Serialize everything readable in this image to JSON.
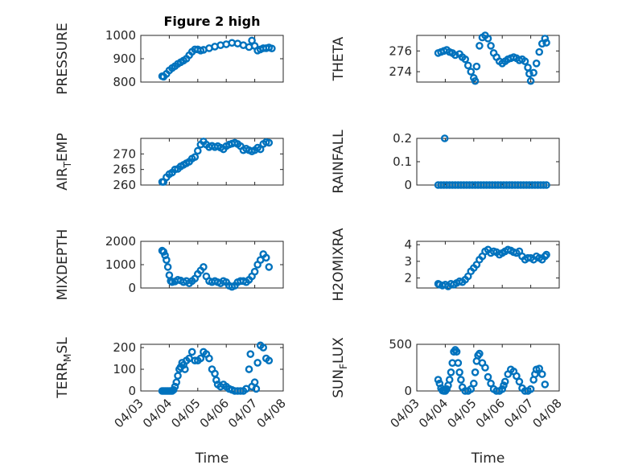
{
  "chart_data": [
    {
      "type": "scatter",
      "name": "pressure",
      "title": "Figure 2 high",
      "ylabel": "PRESSURE",
      "ylabel_sub": "",
      "ylabel_tail": "",
      "xlabel": "",
      "ylim": [
        800,
        1000
      ],
      "yticks": [
        800,
        900,
        1000
      ],
      "ytick_labels": [
        "800",
        "900",
        "1000"
      ],
      "xlim": [
        0,
        5
      ],
      "xticks": [
        0,
        1,
        2,
        3,
        4,
        5
      ],
      "xtick_labels": [],
      "x": [
        0.75,
        0.8,
        0.9,
        1.0,
        1.1,
        1.2,
        1.3,
        1.4,
        1.5,
        1.6,
        1.7,
        1.8,
        1.9,
        2.0,
        2.1,
        2.2,
        2.4,
        2.6,
        2.8,
        3.0,
        3.2,
        3.4,
        3.6,
        3.8,
        3.9,
        4.0,
        4.1,
        4.2,
        4.3,
        4.4,
        4.5,
        4.6
      ],
      "y": [
        825,
        823,
        835,
        850,
        860,
        868,
        878,
        885,
        892,
        900,
        915,
        930,
        940,
        940,
        935,
        938,
        945,
        952,
        958,
        962,
        968,
        965,
        958,
        950,
        978,
        955,
        935,
        940,
        945,
        945,
        948,
        944
      ]
    },
    {
      "type": "scatter",
      "name": "theta",
      "title": "",
      "ylabel": "THETA",
      "ylabel_sub": "",
      "ylabel_tail": "",
      "xlabel": "",
      "ylim": [
        273,
        277.5
      ],
      "yticks": [
        274,
        276
      ],
      "ytick_labels": [
        "274",
        "276"
      ],
      "xlim": [
        0,
        5
      ],
      "xticks": [
        0,
        1,
        2,
        3,
        4,
        5
      ],
      "xtick_labels": [],
      "x": [
        0.75,
        0.85,
        0.95,
        1.05,
        1.15,
        1.25,
        1.35,
        1.5,
        1.6,
        1.7,
        1.8,
        1.9,
        2.0,
        2.05,
        2.1,
        2.2,
        2.3,
        2.4,
        2.5,
        2.6,
        2.7,
        2.8,
        2.9,
        3.0,
        3.1,
        3.2,
        3.3,
        3.4,
        3.5,
        3.6,
        3.7,
        3.8,
        3.9,
        3.95,
        4.0,
        4.1,
        4.2,
        4.3,
        4.4,
        4.5,
        4.55
      ],
      "y": [
        275.8,
        275.9,
        276.0,
        276.1,
        275.9,
        275.8,
        275.6,
        275.7,
        275.4,
        275.2,
        274.6,
        274.0,
        273.4,
        273.1,
        274.5,
        276.5,
        277.3,
        277.5,
        277.2,
        276.5,
        275.8,
        275.4,
        275.0,
        274.8,
        275.0,
        275.2,
        275.3,
        275.4,
        275.3,
        275.1,
        275.2,
        275.0,
        274.4,
        273.8,
        273.1,
        273.9,
        274.8,
        275.9,
        276.7,
        277.2,
        276.8
      ]
    },
    {
      "type": "scatter",
      "name": "air_temp",
      "title": "",
      "ylabel": "AIR",
      "ylabel_sub": "T",
      "ylabel_tail": "EMP",
      "xlabel": "",
      "ylim": [
        260,
        275
      ],
      "yticks": [
        260,
        265,
        270
      ],
      "ytick_labels": [
        "260",
        "265",
        "270"
      ],
      "xlim": [
        0,
        5
      ],
      "xticks": [
        0,
        1,
        2,
        3,
        4,
        5
      ],
      "xtick_labels": [],
      "x": [
        0.75,
        0.8,
        0.9,
        1.0,
        1.1,
        1.2,
        1.3,
        1.4,
        1.5,
        1.6,
        1.7,
        1.8,
        1.9,
        2.0,
        2.1,
        2.2,
        2.3,
        2.4,
        2.5,
        2.6,
        2.7,
        2.8,
        2.9,
        3.0,
        3.1,
        3.2,
        3.3,
        3.4,
        3.5,
        3.6,
        3.7,
        3.8,
        3.9,
        4.0,
        4.1,
        4.2,
        4.3,
        4.4,
        4.5
      ],
      "y": [
        261,
        261,
        262.5,
        263.5,
        264,
        265,
        265.2,
        266,
        266.5,
        267,
        267.5,
        268.5,
        269,
        271,
        273,
        274,
        273,
        272.2,
        272.6,
        272.2,
        272.5,
        272,
        271.5,
        272.5,
        273,
        273.3,
        273.6,
        273.2,
        272.5,
        271.2,
        271.7,
        271.2,
        270.8,
        271.2,
        272,
        271.5,
        273.2,
        273.8,
        273.6
      ]
    },
    {
      "type": "scatter",
      "name": "rainfall",
      "title": "",
      "ylabel": "RAINFALL",
      "ylabel_sub": "",
      "ylabel_tail": "",
      "xlabel": "",
      "ylim": [
        0,
        0.2
      ],
      "yticks": [
        0,
        0.1,
        0.2
      ],
      "ytick_labels": [
        "0",
        "0.1",
        "0.2"
      ],
      "xlim": [
        0,
        5
      ],
      "xticks": [
        0,
        1,
        2,
        3,
        4,
        5
      ],
      "xtick_labels": [],
      "x": [
        0.75,
        0.85,
        0.95,
        1.05,
        1.15,
        1.25,
        1.35,
        1.45,
        1.55,
        1.65,
        1.75,
        1.85,
        1.95,
        2.05,
        2.15,
        2.25,
        2.35,
        2.45,
        2.55,
        2.65,
        2.75,
        2.85,
        2.95,
        3.05,
        3.15,
        3.25,
        3.35,
        3.45,
        3.55,
        3.65,
        3.75,
        3.85,
        3.95,
        4.05,
        4.15,
        4.25,
        4.35,
        4.45,
        4.55,
        0.98
      ],
      "y": [
        0,
        0,
        0,
        0,
        0,
        0,
        0,
        0,
        0,
        0,
        0,
        0,
        0,
        0,
        0,
        0,
        0,
        0,
        0,
        0,
        0,
        0,
        0,
        0,
        0,
        0,
        0,
        0,
        0,
        0,
        0,
        0,
        0,
        0,
        0,
        0,
        0,
        0,
        0,
        0.2
      ]
    },
    {
      "type": "scatter",
      "name": "mixdepth",
      "title": "",
      "ylabel": "MIXDEPTH",
      "ylabel_sub": "",
      "ylabel_tail": "",
      "xlabel": "",
      "ylim": [
        0,
        2000
      ],
      "yticks": [
        0,
        1000,
        2000
      ],
      "ytick_labels": [
        "0",
        "1000",
        "2000"
      ],
      "xlim": [
        0,
        5
      ],
      "xticks": [
        0,
        1,
        2,
        3,
        4,
        5
      ],
      "xtick_labels": [],
      "x": [
        0.75,
        0.8,
        0.85,
        0.9,
        0.95,
        1.0,
        1.05,
        1.1,
        1.2,
        1.3,
        1.4,
        1.5,
        1.6,
        1.7,
        1.8,
        1.9,
        2.0,
        2.1,
        2.2,
        2.3,
        2.4,
        2.5,
        2.6,
        2.7,
        2.8,
        2.9,
        3.0,
        3.1,
        3.2,
        3.3,
        3.4,
        3.5,
        3.6,
        3.7,
        3.8,
        3.9,
        4.0,
        4.1,
        4.2,
        4.3,
        4.4,
        4.5
      ],
      "y": [
        1600,
        1550,
        1400,
        1200,
        900,
        550,
        300,
        250,
        280,
        350,
        320,
        250,
        300,
        200,
        300,
        400,
        600,
        750,
        900,
        500,
        300,
        250,
        300,
        250,
        200,
        300,
        250,
        100,
        50,
        100,
        250,
        300,
        300,
        250,
        350,
        500,
        700,
        1000,
        1200,
        1450,
        1300,
        900
      ]
    },
    {
      "type": "scatter",
      "name": "h2omixra",
      "title": "",
      "ylabel": "H2OMIXRA",
      "ylabel_sub": "",
      "ylabel_tail": "",
      "xlabel": "",
      "ylim": [
        1.4,
        4.2
      ],
      "yticks": [
        2,
        3,
        4
      ],
      "ytick_labels": [
        "2",
        "3",
        "4"
      ],
      "xlim": [
        0,
        5
      ],
      "xticks": [
        0,
        1,
        2,
        3,
        4,
        5
      ],
      "xtick_labels": [],
      "x": [
        0.75,
        0.8,
        0.9,
        1.0,
        1.1,
        1.2,
        1.3,
        1.4,
        1.5,
        1.6,
        1.7,
        1.8,
        1.9,
        2.0,
        2.1,
        2.2,
        2.3,
        2.4,
        2.5,
        2.6,
        2.7,
        2.8,
        2.9,
        3.0,
        3.1,
        3.2,
        3.3,
        3.4,
        3.5,
        3.6,
        3.7,
        3.8,
        3.9,
        4.0,
        4.1,
        4.2,
        4.3,
        4.4,
        4.5,
        4.55
      ],
      "y": [
        1.65,
        1.6,
        1.55,
        1.6,
        1.5,
        1.65,
        1.6,
        1.7,
        1.8,
        1.75,
        1.9,
        2.1,
        2.4,
        2.6,
        2.8,
        3.1,
        3.3,
        3.6,
        3.7,
        3.5,
        3.6,
        3.55,
        3.4,
        3.5,
        3.6,
        3.7,
        3.65,
        3.55,
        3.5,
        3.6,
        3.3,
        3.1,
        3.2,
        3.2,
        3.1,
        3.3,
        3.2,
        3.1,
        3.3,
        3.4
      ]
    },
    {
      "type": "scatter",
      "name": "terr_msl",
      "title": "",
      "ylabel": "TERR",
      "ylabel_sub": "M",
      "ylabel_tail": "SL",
      "xlabel": "Time",
      "ylim": [
        0,
        215
      ],
      "yticks": [
        0,
        100,
        200
      ],
      "ytick_labels": [
        "0",
        "100",
        "200"
      ],
      "xlim": [
        0,
        5
      ],
      "xticks": [
        0,
        1,
        2,
        3,
        4,
        5
      ],
      "xtick_labels": [
        "04/03",
        "04/04",
        "04/05",
        "04/06",
        "04/07",
        "04/08"
      ],
      "x": [
        0.75,
        0.8,
        0.85,
        0.9,
        0.95,
        1.0,
        1.05,
        1.1,
        1.15,
        1.2,
        1.25,
        1.3,
        1.35,
        1.4,
        1.45,
        1.5,
        1.55,
        1.6,
        1.7,
        1.8,
        1.9,
        2.0,
        2.1,
        2.2,
        2.3,
        2.4,
        2.5,
        2.6,
        2.65,
        2.7,
        2.8,
        2.9,
        3.0,
        3.1,
        3.2,
        3.3,
        3.4,
        3.5,
        3.6,
        3.7,
        3.8,
        3.85,
        3.9,
        4.0,
        4.05,
        4.1,
        4.2,
        4.3,
        4.4,
        4.5
      ],
      "y": [
        0,
        0,
        0,
        0,
        0,
        0,
        0,
        0,
        5,
        20,
        40,
        70,
        100,
        110,
        130,
        120,
        100,
        140,
        150,
        180,
        140,
        140,
        150,
        180,
        170,
        150,
        100,
        80,
        50,
        30,
        20,
        30,
        20,
        10,
        5,
        0,
        0,
        0,
        0,
        10,
        100,
        170,
        20,
        40,
        10,
        130,
        210,
        200,
        150,
        140
      ]
    },
    {
      "type": "scatter",
      "name": "sun_flux",
      "title": "",
      "ylabel": "SUN",
      "ylabel_sub": "F",
      "ylabel_tail": "LUX",
      "xlabel": "Time",
      "ylim": [
        0,
        500
      ],
      "yticks": [
        0,
        500
      ],
      "ytick_labels": [
        "0",
        "500"
      ],
      "xlim": [
        0,
        5
      ],
      "xticks": [
        0,
        1,
        2,
        3,
        4,
        5
      ],
      "xtick_labels": [
        "04/03",
        "04/04",
        "04/05",
        "04/06",
        "04/07",
        "04/08"
      ],
      "x": [
        0.75,
        0.8,
        0.85,
        0.9,
        0.95,
        1.0,
        1.05,
        1.1,
        1.15,
        1.2,
        1.25,
        1.3,
        1.35,
        1.4,
        1.45,
        1.5,
        1.55,
        1.6,
        1.7,
        1.8,
        1.9,
        2.0,
        2.05,
        2.1,
        2.15,
        2.2,
        2.3,
        2.4,
        2.5,
        2.6,
        2.7,
        2.8,
        2.9,
        3.0,
        3.05,
        3.1,
        3.2,
        3.3,
        3.4,
        3.5,
        3.6,
        3.7,
        3.8,
        3.9,
        4.0,
        4.1,
        4.15,
        4.2,
        4.3,
        4.4,
        4.5
      ],
      "y": [
        120,
        80,
        30,
        5,
        0,
        0,
        20,
        60,
        120,
        200,
        300,
        420,
        440,
        420,
        300,
        200,
        120,
        40,
        0,
        0,
        20,
        80,
        200,
        320,
        380,
        400,
        300,
        250,
        150,
        80,
        20,
        0,
        0,
        20,
        60,
        100,
        180,
        230,
        210,
        160,
        100,
        30,
        0,
        0,
        20,
        120,
        180,
        230,
        240,
        180,
        70
      ]
    }
  ]
}
